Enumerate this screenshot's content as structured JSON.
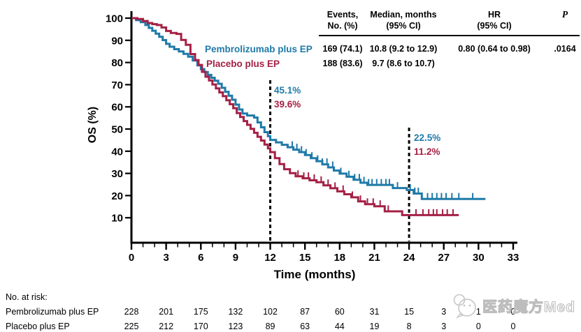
{
  "summary_table": {
    "headers": {
      "events_l1": "Events,",
      "events_l2": "No. (%)",
      "median_l1": "Median, months",
      "median_l2": "(95% CI)",
      "hr_l1": "HR",
      "hr_l2": "(95% CI)",
      "p": "P"
    },
    "rows": [
      {
        "events": "169 (74.1)",
        "median": "10.8 (9.2 to 12.9)",
        "hr": "0.80 (0.64 to 0.98)",
        "p": ".0164"
      },
      {
        "events": "188 (83.6)",
        "median": "9.7 (8.6 to 10.7)",
        "hr": "",
        "p": ""
      }
    ]
  },
  "legend": {
    "items": [
      {
        "label": "Pembrolizumab plus EP",
        "color": "#1f7aa8"
      },
      {
        "label": "Placebo plus EP",
        "color": "#a42045"
      }
    ]
  },
  "axes": {
    "y_label": "OS (%)",
    "x_label": "Time (months)"
  },
  "risk_table": {
    "title": "No. at risk:",
    "rows": [
      {
        "label": "Pembrolizumab plus EP",
        "values": [
          "228",
          "201",
          "175",
          "132",
          "102",
          "87",
          "60",
          "31",
          "15",
          "3",
          "1",
          "0"
        ]
      },
      {
        "label": "Placebo plus EP",
        "values": [
          "225",
          "212",
          "170",
          "123",
          "89",
          "63",
          "44",
          "19",
          "8",
          "3",
          "0",
          "0"
        ]
      }
    ]
  },
  "watermark": {
    "text": "医药魔方Med"
  },
  "chart_data": {
    "type": "line",
    "subtype": "kaplan-meier-step",
    "title": "",
    "xlabel": "Time (months)",
    "ylabel": "OS (%)",
    "xlim": [
      0,
      33
    ],
    "ylim": [
      0,
      100
    ],
    "xticks": [
      0,
      3,
      6,
      9,
      12,
      15,
      18,
      21,
      24,
      27,
      30,
      33
    ],
    "yticks": [
      10,
      20,
      30,
      40,
      50,
      60,
      70,
      80,
      90,
      100
    ],
    "grid": false,
    "legend_position": "upper-center-left",
    "reference_lines": [
      {
        "x": 12,
        "labels": [
          {
            "text": "45.1%",
            "color": "#1f7aa8"
          },
          {
            "text": "39.6%",
            "color": "#a42045"
          }
        ]
      },
      {
        "x": 24,
        "labels": [
          {
            "text": "22.5%",
            "color": "#1f7aa8"
          },
          {
            "text": "11.2%",
            "color": "#a42045"
          }
        ]
      }
    ],
    "series": [
      {
        "name": "Pembrolizumab plus EP",
        "color": "#1f7aa8",
        "points": [
          [
            0,
            100
          ],
          [
            0.4,
            99.1
          ],
          [
            0.8,
            98.2
          ],
          [
            1.2,
            96.9
          ],
          [
            1.5,
            95.6
          ],
          [
            1.8,
            94.3
          ],
          [
            2.1,
            93
          ],
          [
            2.4,
            91.6
          ],
          [
            2.7,
            90.1
          ],
          [
            3,
            88.4
          ],
          [
            3.3,
            87.1
          ],
          [
            3.7,
            86
          ],
          [
            4.1,
            85
          ],
          [
            4.5,
            83.9
          ],
          [
            4.9,
            82.6
          ],
          [
            5.3,
            80.9
          ],
          [
            5.7,
            78.7
          ],
          [
            6,
            77
          ],
          [
            6.3,
            75.7
          ],
          [
            6.6,
            74.4
          ],
          [
            6.9,
            73.1
          ],
          [
            7.2,
            71.8
          ],
          [
            7.5,
            70.4
          ],
          [
            7.8,
            68.6
          ],
          [
            8.1,
            66.8
          ],
          [
            8.4,
            65
          ],
          [
            8.7,
            63.2
          ],
          [
            9,
            61
          ],
          [
            9.3,
            58.8
          ],
          [
            9.6,
            57
          ],
          [
            10,
            56.1
          ],
          [
            10.6,
            55.2
          ],
          [
            10.9,
            53
          ],
          [
            11.2,
            50.8
          ],
          [
            11.5,
            48.6
          ],
          [
            11.8,
            46.8
          ],
          [
            12,
            45.1
          ],
          [
            12.5,
            44
          ],
          [
            13,
            42.9
          ],
          [
            13.5,
            41.8
          ],
          [
            14,
            40.7
          ],
          [
            14.5,
            39.6
          ],
          [
            15,
            38.3
          ],
          [
            15.5,
            36.9
          ],
          [
            16,
            35.5
          ],
          [
            16.5,
            34.1
          ],
          [
            17,
            32.7
          ],
          [
            17.5,
            31.3
          ],
          [
            18,
            29.9
          ],
          [
            18.6,
            28.5
          ],
          [
            19.2,
            27.1
          ],
          [
            19.8,
            25.8
          ],
          [
            20.4,
            24.8
          ],
          [
            22.6,
            23.4
          ],
          [
            23.8,
            22.5
          ],
          [
            24.4,
            20.9
          ],
          [
            25.1,
            18.5
          ],
          [
            30.6,
            18.5
          ]
        ],
        "censor_times": [
          13.9,
          14.3,
          14.7,
          15.1,
          15.6,
          16.1,
          16.5,
          16.9,
          17.4,
          18.1,
          18.8,
          19.3,
          19.7,
          20.1,
          20.5,
          20.8,
          21.2,
          21.6,
          22,
          22.3,
          23,
          24.1,
          24.5,
          24.8,
          25.6,
          26,
          26.4,
          26.8,
          27.2,
          27.7,
          28.3,
          29.5
        ]
      },
      {
        "name": "Placebo plus EP",
        "color": "#a42045",
        "points": [
          [
            0,
            100
          ],
          [
            0.5,
            99.6
          ],
          [
            1,
            98.7
          ],
          [
            1.4,
            97.8
          ],
          [
            1.8,
            97.3
          ],
          [
            2.2,
            96.9
          ],
          [
            2.6,
            95.8
          ],
          [
            3,
            94.2
          ],
          [
            3.4,
            93.3
          ],
          [
            3.9,
            92.9
          ],
          [
            4.3,
            90.2
          ],
          [
            4.7,
            88
          ],
          [
            5.1,
            83.8
          ],
          [
            5.5,
            81.1
          ],
          [
            5.8,
            78.9
          ],
          [
            6.1,
            75.8
          ],
          [
            6.4,
            73.6
          ],
          [
            6.7,
            71.9
          ],
          [
            7,
            70.1
          ],
          [
            7.3,
            68.3
          ],
          [
            7.6,
            66.5
          ],
          [
            7.9,
            64.8
          ],
          [
            8.2,
            63
          ],
          [
            8.5,
            61.2
          ],
          [
            8.8,
            59.4
          ],
          [
            9.1,
            57.2
          ],
          [
            9.4,
            55.4
          ],
          [
            9.7,
            53.6
          ],
          [
            10,
            51.9
          ],
          [
            10.3,
            50.1
          ],
          [
            10.6,
            48.3
          ],
          [
            10.9,
            46.5
          ],
          [
            11.2,
            44.8
          ],
          [
            11.5,
            43
          ],
          [
            11.8,
            41.3
          ],
          [
            12,
            39.6
          ],
          [
            12.4,
            36.9
          ],
          [
            12.8,
            34.2
          ],
          [
            13.2,
            31.9
          ],
          [
            13.7,
            30.1
          ],
          [
            14.2,
            28.7
          ],
          [
            14.8,
            27.8
          ],
          [
            15.4,
            26.9
          ],
          [
            16,
            26
          ],
          [
            16.6,
            24.6
          ],
          [
            17.2,
            23.3
          ],
          [
            17.8,
            21.9
          ],
          [
            18.4,
            20.6
          ],
          [
            19,
            19.2
          ],
          [
            19.6,
            17.4
          ],
          [
            20.2,
            16.1
          ],
          [
            21,
            15.2
          ],
          [
            21.9,
            12.9
          ],
          [
            23.4,
            11.2
          ],
          [
            28.3,
            11.2
          ]
        ],
        "censor_times": [
          14.4,
          14.9,
          15.3,
          15.8,
          16.4,
          17,
          17.6,
          18.3,
          19.1,
          19.8,
          20.4,
          20.9,
          21.5,
          22.2,
          24.6,
          25.2,
          25.7,
          26.1,
          26.4,
          26.9,
          27.3,
          27.8
        ]
      }
    ],
    "risk_table": {
      "times": [
        0,
        3,
        6,
        9,
        12,
        15,
        18,
        21,
        24,
        27,
        30,
        33
      ],
      "rows": [
        {
          "name": "Pembrolizumab plus EP",
          "values": [
            228,
            201,
            175,
            132,
            102,
            87,
            60,
            31,
            15,
            3,
            1,
            0
          ]
        },
        {
          "name": "Placebo plus EP",
          "values": [
            225,
            212,
            170,
            123,
            89,
            63,
            44,
            19,
            8,
            3,
            0,
            0
          ]
        }
      ]
    }
  }
}
